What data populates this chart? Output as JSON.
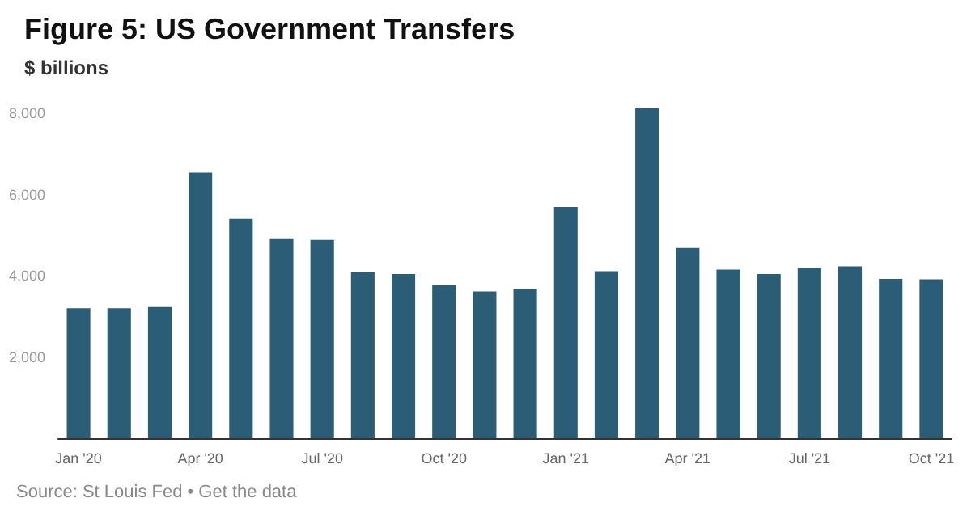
{
  "chart_data": {
    "type": "bar",
    "title": "Figure 5: US Government Transfers",
    "subtitle": "$ billions",
    "categories": [
      "Jan '20",
      null,
      null,
      "Apr '20",
      null,
      null,
      "Jul '20",
      null,
      null,
      "Oct '20",
      null,
      null,
      "Jan '21",
      null,
      null,
      "Apr '21",
      null,
      null,
      "Jul '21",
      null,
      null,
      "Oct '21"
    ],
    "values": [
      3200,
      3200,
      3230,
      6540,
      5400,
      4900,
      4880,
      4080,
      4040,
      3770,
      3610,
      3670,
      5690,
      4110,
      8120,
      4680,
      4150,
      4040,
      4190,
      4230,
      3920,
      3910
    ],
    "color": "#2c5d77",
    "ylim": [
      0,
      8200
    ],
    "yticks": [
      {
        "value": 0,
        "label": null
      },
      {
        "value": 2000,
        "label": "2,000"
      },
      {
        "value": 4000,
        "label": "4,000"
      },
      {
        "value": 6000,
        "label": "6,000"
      },
      {
        "value": 8000,
        "label": "8,000"
      }
    ],
    "annotations": [
      "Source: St Louis Fed • Get the data"
    ]
  }
}
